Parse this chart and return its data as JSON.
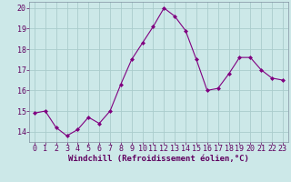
{
  "x": [
    0,
    1,
    2,
    3,
    4,
    5,
    6,
    7,
    8,
    9,
    10,
    11,
    12,
    13,
    14,
    15,
    16,
    17,
    18,
    19,
    20,
    21,
    22,
    23
  ],
  "y": [
    14.9,
    15.0,
    14.2,
    13.8,
    14.1,
    14.7,
    14.4,
    15.0,
    16.3,
    17.5,
    18.3,
    19.1,
    20.0,
    19.6,
    18.9,
    17.5,
    16.0,
    16.1,
    16.8,
    17.6,
    17.6,
    17.0,
    16.6,
    16.5
  ],
  "line_color": "#800080",
  "marker": "D",
  "marker_size": 2.0,
  "bg_color": "#cce8e8",
  "grid_color": "#aacccc",
  "xlabel": "Windchill (Refroidissement éolien,°C)",
  "xlabel_fontsize": 6.5,
  "tick_fontsize": 6.0,
  "xlim": [
    -0.5,
    23.5
  ],
  "ylim": [
    13.5,
    20.3
  ],
  "yticks": [
    14,
    15,
    16,
    17,
    18,
    19,
    20
  ],
  "xticks": [
    0,
    1,
    2,
    3,
    4,
    5,
    6,
    7,
    8,
    9,
    10,
    11,
    12,
    13,
    14,
    15,
    16,
    17,
    18,
    19,
    20,
    21,
    22,
    23
  ],
  "label_color": "#600060"
}
